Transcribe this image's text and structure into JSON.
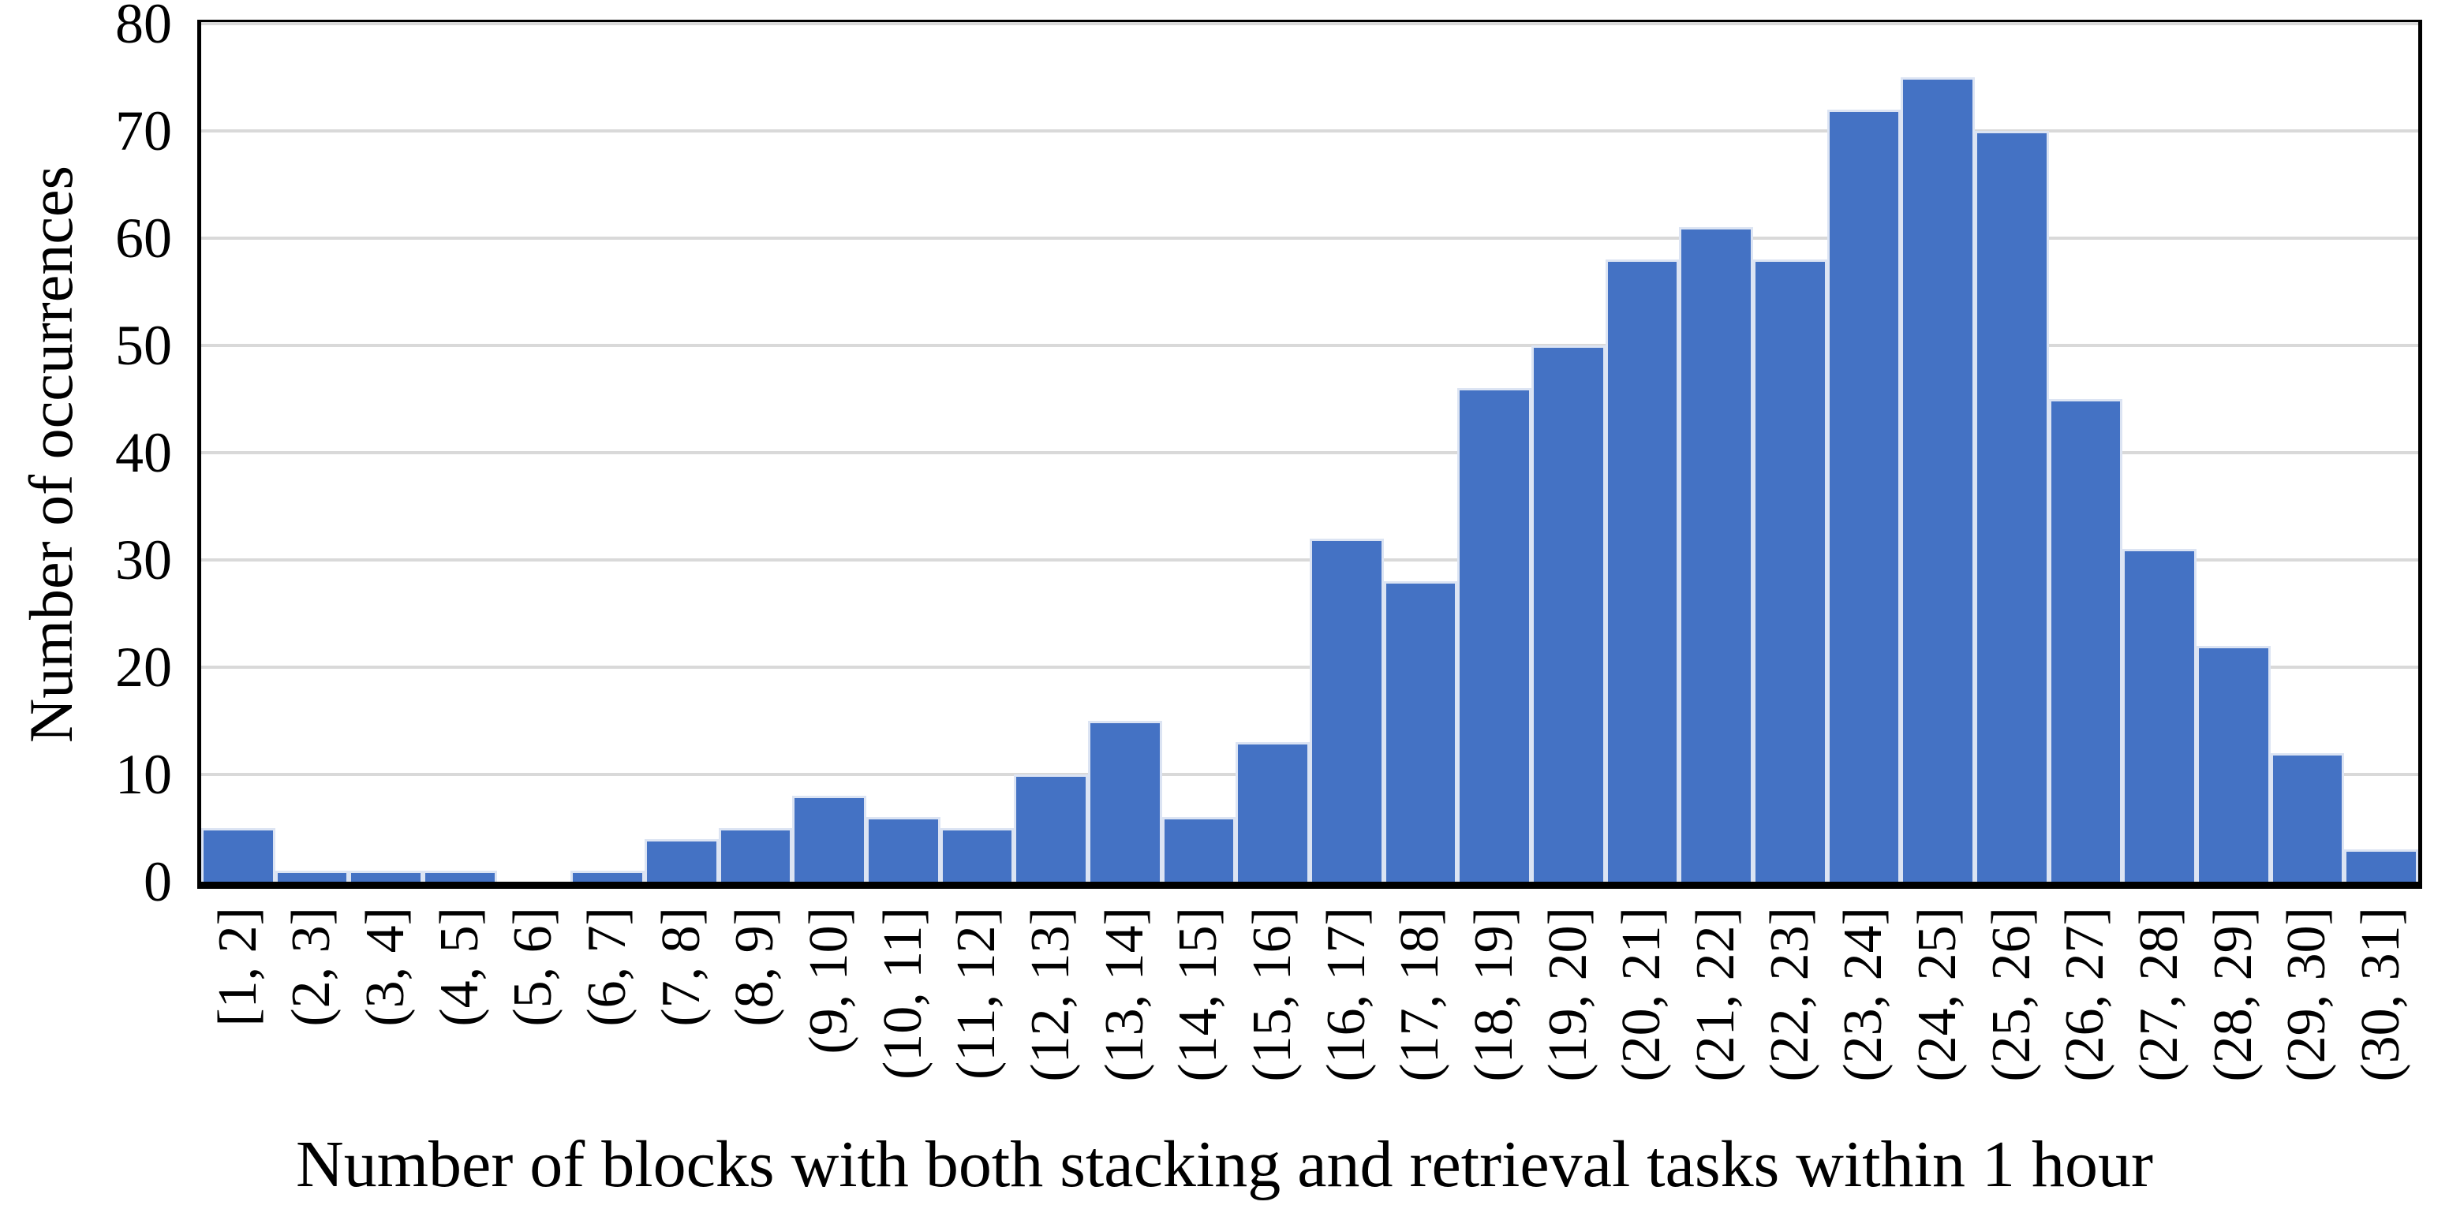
{
  "chart_data": {
    "type": "bar",
    "variant": "histogram",
    "title": "",
    "xlabel": "Number of blocks with both stacking and retrieval tasks within 1 hour",
    "ylabel": "Number of occurrences",
    "categories": [
      "[1, 2]",
      "(2, 3]",
      "(3, 4]",
      "(4, 5]",
      "(5, 6]",
      "(6, 7]",
      "(7, 8]",
      "(8, 9]",
      "(9, 10]",
      "(10, 11]",
      "(11, 12]",
      "(12, 13]",
      "(13, 14]",
      "(14, 15]",
      "(15, 16]",
      "(16, 17]",
      "(17, 18]",
      "(18, 19]",
      "(19, 20]",
      "(20, 21]",
      "(21, 22]",
      "(22, 23]",
      "(23, 24]",
      "(24, 25]",
      "(25, 26]",
      "(26, 27]",
      "(27, 28]",
      "(28, 29]",
      "(29, 30]",
      "(30, 31]"
    ],
    "values": [
      5,
      1,
      1,
      1,
      0,
      1,
      4,
      5,
      8,
      6,
      5,
      10,
      15,
      6,
      13,
      32,
      28,
      46,
      50,
      58,
      61,
      58,
      72,
      75,
      70,
      45,
      31,
      22,
      12,
      3
    ],
    "ylim": [
      0,
      80
    ],
    "yticks": [
      0,
      10,
      20,
      30,
      40,
      50,
      60,
      70,
      80
    ],
    "grid": "horizontal-only",
    "legend": "none",
    "xtick_rotation_degrees": 90,
    "colors": {
      "bar_fill": "#4472C4",
      "bar_border": "#DCE4F3",
      "gridline": "#D9D9D9",
      "axis": "#000000",
      "text": "#000000",
      "background": "#FFFFFF"
    }
  }
}
